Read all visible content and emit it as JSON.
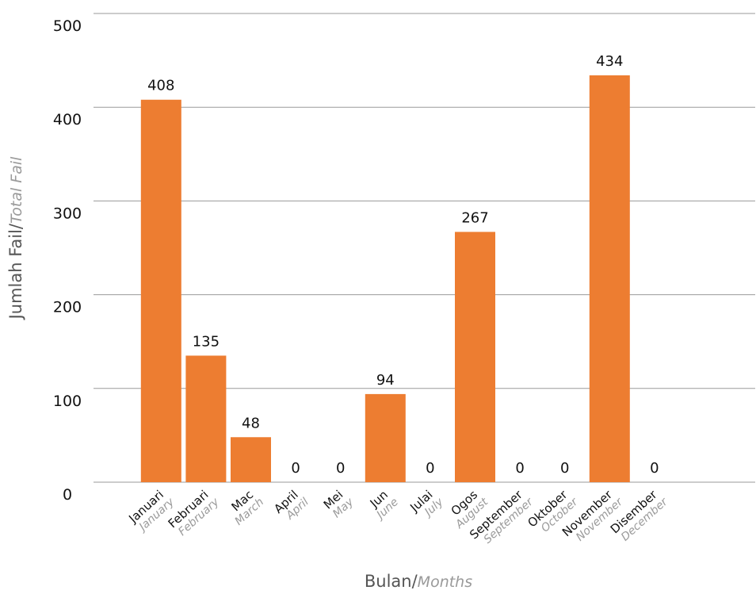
{
  "chart_data": {
    "type": "bar",
    "categories": [
      "Januari",
      "Februari",
      "Mac",
      "April",
      "Mei",
      "Jun",
      "Julai",
      "Ogos",
      "September",
      "Oktober",
      "November",
      "Disember"
    ],
    "categories_en": [
      "January",
      "February",
      "March",
      "April",
      "May",
      "June",
      "July",
      "August",
      "September",
      "October",
      "November",
      "December"
    ],
    "values": [
      408,
      135,
      48,
      0,
      0,
      94,
      0,
      267,
      0,
      0,
      434,
      0
    ],
    "ylim": [
      0,
      500
    ],
    "yticks": [
      0,
      100,
      200,
      300,
      400,
      500
    ],
    "xlabel": "Bulan/",
    "xlabel_en": "Months",
    "ylabel": "Jumlah Fail/",
    "ylabel_en": "Total Fail",
    "bar_color": "#ED7D31",
    "grid": true,
    "grid_color": "#9a9a9a"
  }
}
